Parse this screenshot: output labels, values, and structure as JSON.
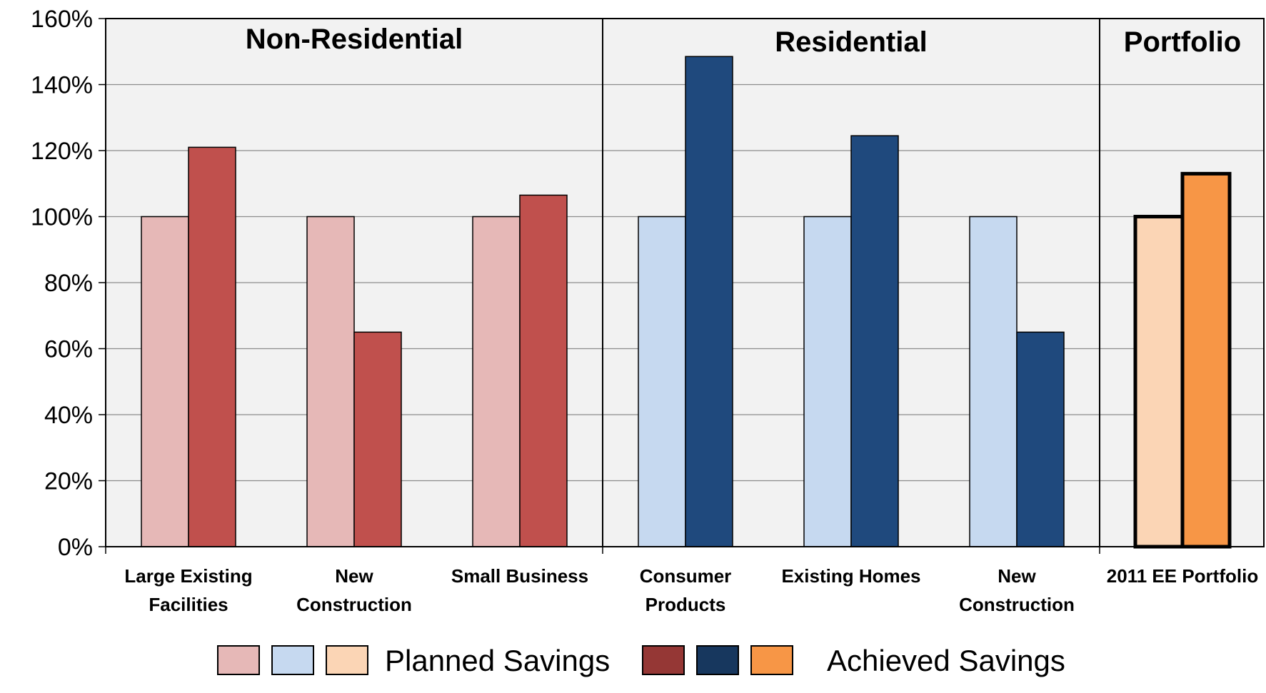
{
  "chart_data": {
    "type": "bar",
    "ylim": [
      0,
      160
    ],
    "y_ticks": [
      "0%",
      "20%",
      "40%",
      "60%",
      "80%",
      "100%",
      "120%",
      "140%",
      "160%"
    ],
    "grid": true,
    "legend_position": "bottom",
    "groups": [
      {
        "title": "Non-Residential",
        "planned_color": "#e6b8b7",
        "achieved_color": "#c0504d",
        "categories": [
          {
            "label_lines": [
              "Large Existing",
              "Facilities"
            ],
            "planned": 100,
            "achieved": 121
          },
          {
            "label_lines": [
              "New",
              "Construction"
            ],
            "planned": 100,
            "achieved": 65
          },
          {
            "label_lines": [
              "Small Business"
            ],
            "planned": 100,
            "achieved": 106.5
          }
        ]
      },
      {
        "title": "Residential",
        "planned_color": "#c6d9f0",
        "achieved_color": "#1f497d",
        "categories": [
          {
            "label_lines": [
              "Consumer",
              "Products"
            ],
            "planned": 100,
            "achieved": 148.5
          },
          {
            "label_lines": [
              "Existing Homes"
            ],
            "planned": 100,
            "achieved": 124.5
          },
          {
            "label_lines": [
              "New",
              "Construction"
            ],
            "planned": 100,
            "achieved": 65
          }
        ]
      },
      {
        "title": "Portfolio",
        "planned_color": "#fbd5b5",
        "achieved_color": "#f79646",
        "categories": [
          {
            "label_lines": [
              "2011 EE Portfolio"
            ],
            "planned": 100,
            "achieved": 113
          }
        ]
      }
    ],
    "legend": {
      "planned": {
        "label": "Planned Savings",
        "colors": [
          "#e6b8b7",
          "#c6d9f0",
          "#fbd5b5"
        ]
      },
      "achieved": {
        "label": "Achieved Savings",
        "colors": [
          "#953735",
          "#17375e",
          "#f79646"
        ]
      }
    },
    "colors": {
      "plot_background": "#f2f2f2",
      "gridline": "#8c8c8c",
      "axis": "#000000"
    }
  }
}
